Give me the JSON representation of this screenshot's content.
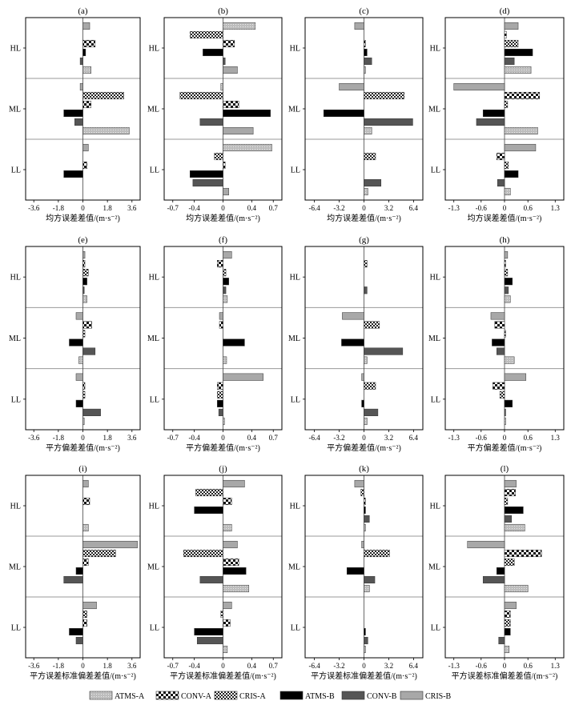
{
  "legend": [
    {
      "key": "atmsA",
      "label": "ATMS-A",
      "pattern": "lightfine"
    },
    {
      "key": "convA",
      "label": "CONV-A",
      "pattern": "checker"
    },
    {
      "key": "crisA",
      "label": "CRIS-A",
      "pattern": "densechecker"
    },
    {
      "key": "atmsB",
      "label": "ATMS-B",
      "pattern": "black"
    },
    {
      "key": "convB",
      "label": "CONV-B",
      "pattern": "darkgray"
    },
    {
      "key": "crisB",
      "label": "CRIS-B",
      "pattern": "lightgray"
    }
  ],
  "row_titles": [
    "均方误差差值/(m·s⁻²)",
    "平方偏差差值/(m·s⁻²)",
    "平方误差标准偏差差值/(m·s⁻²)"
  ],
  "chart_data": [
    {
      "type": "bar",
      "label": "(a)",
      "xticks": [
        "-3.6",
        "-1.8",
        "0",
        "1.8",
        "3.6"
      ],
      "xlim": [
        -4.2,
        4.2
      ],
      "categories": [
        "HL",
        "ML",
        "LL"
      ],
      "series": [
        {
          "key": "crisB",
          "values": [
            0.5,
            -0.2,
            0.4
          ]
        },
        {
          "key": "crisA",
          "values": [
            0.0,
            3.0,
            0.0
          ]
        },
        {
          "key": "convA",
          "values": [
            0.9,
            0.6,
            0.3
          ]
        },
        {
          "key": "atmsB",
          "values": [
            0.2,
            -1.4,
            -1.4
          ]
        },
        {
          "key": "convB",
          "values": [
            -0.2,
            -0.6,
            0.0
          ]
        },
        {
          "key": "atmsA",
          "values": [
            0.6,
            0.2,
            0.0
          ]
        }
      ],
      "extra": [
        {
          "row": 1,
          "key": "atmsA",
          "slot": 5,
          "value": 3.4
        }
      ]
    },
    {
      "type": "bar",
      "label": "(b)",
      "xticks": [
        "-0.7",
        "-0.4",
        "0",
        "0.4",
        "0.7"
      ],
      "xlim": [
        -0.82,
        0.82
      ],
      "categories": [
        "HL",
        "ML",
        "LL"
      ],
      "series": [
        {
          "key": "atmsA",
          "values": [
            0.45,
            -0.03,
            0.68
          ]
        },
        {
          "key": "crisA",
          "values": [
            -0.46,
            -0.6,
            -0.12
          ]
        },
        {
          "key": "convA",
          "values": [
            0.16,
            0.22,
            0.03
          ]
        },
        {
          "key": "atmsB",
          "values": [
            -0.28,
            0.66,
            -0.46
          ]
        },
        {
          "key": "convB",
          "values": [
            0.03,
            -0.32,
            -0.42
          ]
        },
        {
          "key": "crisB",
          "values": [
            0.2,
            0.42,
            0.08
          ]
        }
      ]
    },
    {
      "type": "bar",
      "label": "(c)",
      "xticks": [
        "-6.4",
        "-3.2",
        "0",
        "3.2",
        "6.4"
      ],
      "xlim": [
        -7.6,
        7.6
      ],
      "categories": [
        "HL",
        "ML",
        "LL"
      ],
      "series": [
        {
          "key": "crisB",
          "values": [
            -1.2,
            -3.2,
            0.0
          ]
        },
        {
          "key": "crisA",
          "values": [
            0.0,
            5.2,
            1.5
          ]
        },
        {
          "key": "convA",
          "values": [
            0.2,
            0.0,
            0.0
          ]
        },
        {
          "key": "atmsB",
          "values": [
            0.4,
            -5.2,
            0.0
          ]
        },
        {
          "key": "convB",
          "values": [
            1.0,
            6.3,
            2.2
          ]
        },
        {
          "key": "atmsA",
          "values": [
            0.2,
            1.0,
            0.5
          ]
        }
      ]
    },
    {
      "type": "bar",
      "label": "(d)",
      "xticks": [
        "-1.3",
        "-0.6",
        "0",
        "0.6",
        "1.3"
      ],
      "xlim": [
        -1.52,
        1.52
      ],
      "categories": [
        "HL",
        "ML",
        "LL"
      ],
      "series": [
        {
          "key": "crisB",
          "values": [
            0.35,
            -1.3,
            0.8
          ]
        },
        {
          "key": "convA",
          "values": [
            0.05,
            0.9,
            -0.2
          ]
        },
        {
          "key": "crisA",
          "values": [
            0.35,
            0.08,
            0.1
          ]
        },
        {
          "key": "atmsB",
          "values": [
            0.72,
            -0.55,
            0.35
          ]
        },
        {
          "key": "convB",
          "values": [
            0.25,
            -0.72,
            -0.18
          ]
        },
        {
          "key": "atmsA",
          "values": [
            0.68,
            0.85,
            0.15
          ]
        }
      ]
    },
    {
      "type": "bar",
      "label": "(e)",
      "xticks": [
        "-3.6",
        "-1.8",
        "0",
        "1.8",
        "3.6"
      ],
      "xlim": [
        -4.2,
        4.2
      ],
      "categories": [
        "HL",
        "ML",
        "LL"
      ],
      "series": [
        {
          "key": "crisB",
          "values": [
            0.15,
            -0.5,
            -0.5
          ]
        },
        {
          "key": "convA",
          "values": [
            0.15,
            0.65,
            0.15
          ]
        },
        {
          "key": "crisA",
          "values": [
            0.4,
            0.15,
            0.15
          ]
        },
        {
          "key": "atmsB",
          "values": [
            0.3,
            -1.0,
            -0.5
          ]
        },
        {
          "key": "convB",
          "values": [
            0.1,
            0.9,
            1.3
          ]
        },
        {
          "key": "atmsA",
          "values": [
            0.3,
            -0.3,
            0.1
          ]
        }
      ]
    },
    {
      "type": "bar",
      "label": "(f)",
      "xticks": [
        "-0.7",
        "-0.4",
        "0",
        "0.4",
        "0.7"
      ],
      "xlim": [
        -0.82,
        0.82
      ],
      "categories": [
        "HL",
        "ML",
        "LL"
      ],
      "series": [
        {
          "key": "crisB",
          "values": [
            0.12,
            -0.05,
            0.56
          ]
        },
        {
          "key": "convA",
          "values": [
            -0.08,
            -0.05,
            -0.08
          ]
        },
        {
          "key": "crisA",
          "values": [
            0.04,
            0.0,
            -0.08
          ]
        },
        {
          "key": "atmsB",
          "values": [
            0.08,
            0.3,
            -0.08
          ]
        },
        {
          "key": "convB",
          "values": [
            0.04,
            0.0,
            -0.06
          ]
        },
        {
          "key": "atmsA",
          "values": [
            0.06,
            0.05,
            0.02
          ]
        }
      ]
    },
    {
      "type": "bar",
      "label": "(g)",
      "xticks": [
        "-6.4",
        "-3.2",
        "0",
        "3.2",
        "6.4"
      ],
      "xlim": [
        -7.6,
        7.6
      ],
      "categories": [
        "HL",
        "ML",
        "LL"
      ],
      "series": [
        {
          "key": "crisB",
          "values": [
            0.0,
            -2.8,
            -0.3
          ]
        },
        {
          "key": "crisA",
          "values": [
            0.4,
            2.0,
            1.5
          ]
        },
        {
          "key": "convA",
          "values": [
            0.0,
            0.0,
            0.0
          ]
        },
        {
          "key": "atmsB",
          "values": [
            0.0,
            -2.9,
            -0.3
          ]
        },
        {
          "key": "convB",
          "values": [
            0.4,
            5.0,
            1.8
          ]
        },
        {
          "key": "atmsA",
          "values": [
            0.0,
            0.4,
            0.4
          ]
        }
      ]
    },
    {
      "type": "bar",
      "label": "(h)",
      "xticks": [
        "-1.3",
        "-0.6",
        "0",
        "0.6",
        "1.3"
      ],
      "xlim": [
        -1.52,
        1.52
      ],
      "categories": [
        "HL",
        "ML",
        "LL"
      ],
      "series": [
        {
          "key": "crisB",
          "values": [
            0.08,
            -0.35,
            0.55
          ]
        },
        {
          "key": "convA",
          "values": [
            0.03,
            -0.25,
            -0.3
          ]
        },
        {
          "key": "crisA",
          "values": [
            0.08,
            0.03,
            -0.12
          ]
        },
        {
          "key": "atmsB",
          "values": [
            0.2,
            -0.32,
            0.2
          ]
        },
        {
          "key": "convB",
          "values": [
            0.1,
            -0.2,
            0.03
          ]
        },
        {
          "key": "atmsA",
          "values": [
            0.15,
            0.25,
            0.03
          ]
        }
      ]
    },
    {
      "type": "bar",
      "label": "(i)",
      "xticks": [
        "-3.6",
        "-1.8",
        "0",
        "1.8",
        "3.6"
      ],
      "xlim": [
        -4.2,
        4.2
      ],
      "categories": [
        "HL",
        "ML",
        "LL"
      ],
      "series": [
        {
          "key": "crisB",
          "values": [
            0.4,
            4.0,
            1.0
          ]
        },
        {
          "key": "crisA",
          "values": [
            0.0,
            2.4,
            0.3
          ]
        },
        {
          "key": "convA",
          "values": [
            0.5,
            0.4,
            0.3
          ]
        },
        {
          "key": "atmsB",
          "values": [
            0.0,
            -0.5,
            -1.0
          ]
        },
        {
          "key": "convB",
          "values": [
            0.0,
            -1.4,
            -0.5
          ]
        },
        {
          "key": "atmsA",
          "values": [
            0.4,
            0.0,
            0.0
          ]
        }
      ]
    },
    {
      "type": "bar",
      "label": "(j)",
      "xticks": [
        "-0.7",
        "-0.4",
        "0",
        "0.4",
        "0.7"
      ],
      "xlim": [
        -0.82,
        0.82
      ],
      "categories": [
        "HL",
        "ML",
        "LL"
      ],
      "series": [
        {
          "key": "crisB",
          "values": [
            0.3,
            0.2,
            0.12
          ]
        },
        {
          "key": "crisA",
          "values": [
            -0.38,
            -0.55,
            -0.03
          ]
        },
        {
          "key": "convA",
          "values": [
            0.12,
            0.22,
            0.1
          ]
        },
        {
          "key": "atmsB",
          "values": [
            -0.4,
            0.32,
            -0.4
          ]
        },
        {
          "key": "convB",
          "values": [
            0.0,
            -0.32,
            -0.36
          ]
        },
        {
          "key": "atmsA",
          "values": [
            0.12,
            0.36,
            0.06
          ]
        }
      ]
    },
    {
      "type": "bar",
      "label": "(k)",
      "xticks": [
        "-6.4",
        "-3.2",
        "0",
        "3.2",
        "6.4"
      ],
      "xlim": [
        -7.6,
        7.6
      ],
      "categories": [
        "HL",
        "ML",
        "LL"
      ],
      "series": [
        {
          "key": "crisB",
          "values": [
            -1.2,
            -0.3,
            0.0
          ]
        },
        {
          "key": "crisA",
          "values": [
            -0.4,
            3.3,
            0.0
          ]
        },
        {
          "key": "convA",
          "values": [
            0.2,
            0.0,
            0.0
          ]
        },
        {
          "key": "atmsB",
          "values": [
            0.2,
            -2.2,
            0.2
          ]
        },
        {
          "key": "convB",
          "values": [
            0.7,
            1.4,
            0.5
          ]
        },
        {
          "key": "atmsA",
          "values": [
            0.2,
            0.7,
            0.2
          ]
        }
      ]
    },
    {
      "type": "bar",
      "label": "(l)",
      "xticks": [
        "-1.3",
        "-0.6",
        "0",
        "0.6",
        "1.3"
      ],
      "xlim": [
        -1.52,
        1.52
      ],
      "categories": [
        "HL",
        "ML",
        "LL"
      ],
      "series": [
        {
          "key": "crisB",
          "values": [
            0.3,
            -0.95,
            0.3
          ]
        },
        {
          "key": "convA",
          "values": [
            0.28,
            0.95,
            0.15
          ]
        },
        {
          "key": "crisA",
          "values": [
            0.08,
            0.25,
            0.15
          ]
        },
        {
          "key": "atmsB",
          "values": [
            0.48,
            -0.2,
            0.15
          ]
        },
        {
          "key": "convB",
          "values": [
            0.18,
            -0.55,
            -0.15
          ]
        },
        {
          "key": "atmsA",
          "values": [
            0.52,
            0.6,
            0.12
          ]
        }
      ]
    }
  ]
}
